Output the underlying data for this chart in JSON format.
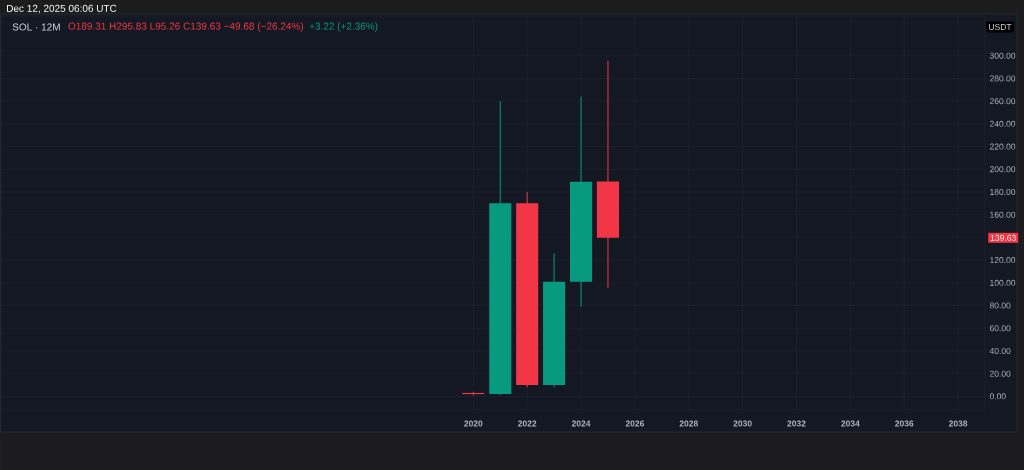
{
  "chart_data": {
    "type": "candlestick",
    "title": "SOL · 12M",
    "ylabel": "USDT",
    "annotations": [
      "Dec 12, 2025 06:06 UTC",
      "O189.31 H295.83 L95.26 C139.63 −49.68 (−26.24%)",
      "+3.22 (+2.36%)",
      "139.63"
    ],
    "x": [
      "2020",
      "2021",
      "2022",
      "2023",
      "2024",
      "2025"
    ],
    "ohlc": [
      [
        3,
        4,
        1,
        2
      ],
      [
        2,
        260,
        1,
        170
      ],
      [
        170,
        180,
        8,
        10
      ],
      [
        10,
        126,
        8,
        101
      ],
      [
        101,
        264,
        79,
        189
      ],
      [
        189.31,
        295.83,
        95.26,
        139.63
      ]
    ],
    "colors": [
      "#f23645",
      "#089981",
      "#f23645",
      "#089981",
      "#089981",
      "#f23645"
    ],
    "xlim": [
      "2002-07",
      "2039"
    ],
    "ylim": [
      -12,
      335
    ],
    "xticks": [
      "2020",
      "2022",
      "2024",
      "2026",
      "2028",
      "2030",
      "2032",
      "2034",
      "2036",
      "2038"
    ],
    "yticks": [
      {
        "value": 0,
        "label": "0.00"
      },
      {
        "value": 20,
        "label": "20.00"
      },
      {
        "value": 40,
        "label": "40.00"
      },
      {
        "value": 60,
        "label": "60.00"
      },
      {
        "value": 80,
        "label": "80.00"
      },
      {
        "value": 100,
        "label": "100.00"
      },
      {
        "value": 120,
        "label": "120.00"
      },
      {
        "value": 140,
        "label": null
      },
      {
        "value": 160,
        "label": "160.00"
      },
      {
        "value": 180,
        "label": "180.00"
      },
      {
        "value": 200,
        "label": "200.00"
      },
      {
        "value": 220,
        "label": "220.00"
      },
      {
        "value": 240,
        "label": "240.00"
      },
      {
        "value": 260,
        "label": "260.00"
      },
      {
        "value": 280,
        "label": "280.00"
      },
      {
        "value": 300,
        "label": "300.00"
      }
    ],
    "grid": true
  }
}
